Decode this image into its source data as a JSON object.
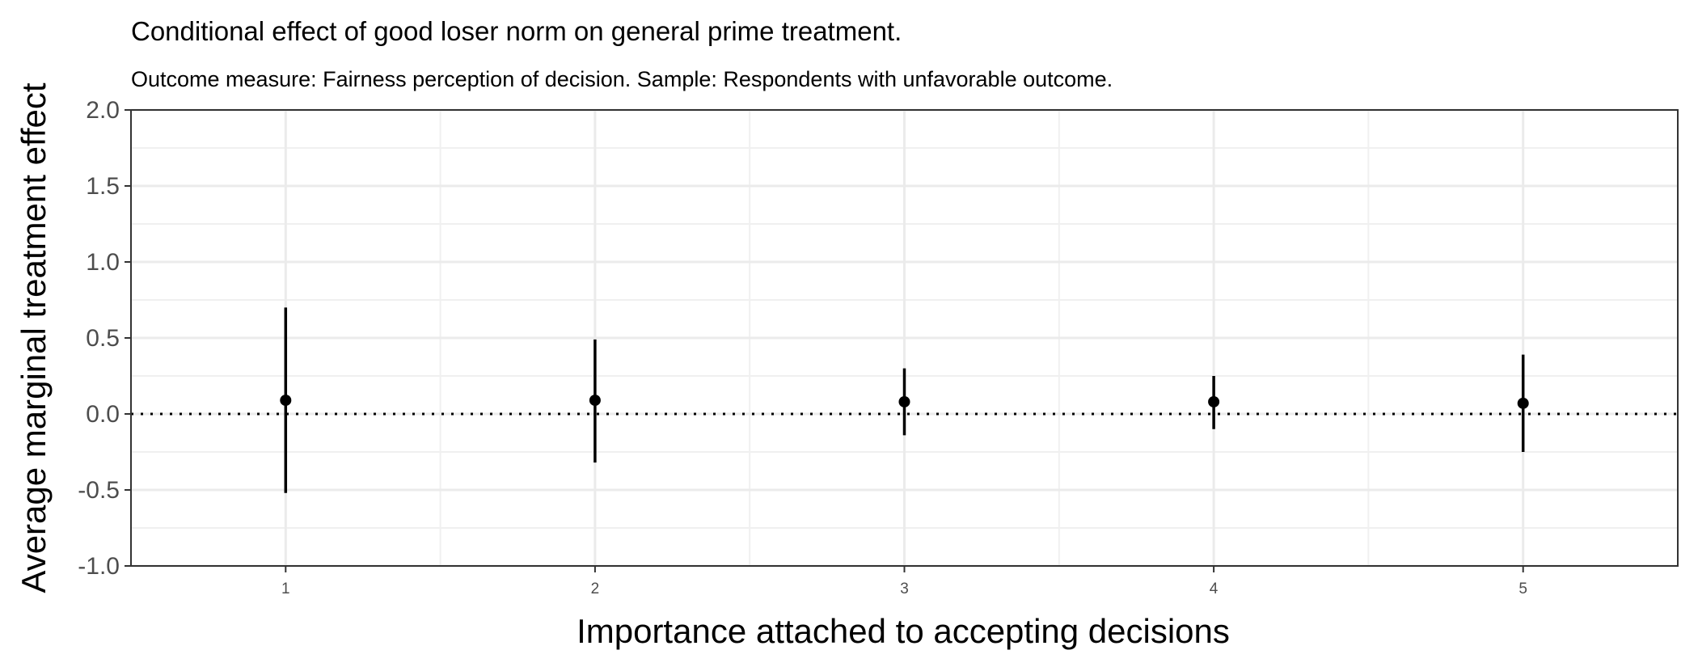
{
  "chart_data": {
    "type": "scatter",
    "title": "Conditional effect of good loser norm on general prime treatment.",
    "subtitle": "Outcome measure: Fairness perception of decision. Sample: Respondents with unfavorable outcome.",
    "xlabel": "Importance attached to accepting decisions",
    "ylabel": "Average marginal treatment effect",
    "x_ticks": [
      "1",
      "2",
      "3",
      "4",
      "5"
    ],
    "y_ticks": [
      "2.0",
      "1.5",
      "1.0",
      "0.5",
      "0.0",
      "-0.5",
      "-1.0"
    ],
    "xlim": [
      0.5,
      5.5
    ],
    "ylim": [
      -1.0,
      2.0
    ],
    "reference_line": 0.0,
    "grid": true,
    "series": [
      {
        "points": [
          {
            "x": 1,
            "y": 0.09,
            "lower": -0.52,
            "upper": 0.7
          },
          {
            "x": 2,
            "y": 0.09,
            "lower": -0.32,
            "upper": 0.49
          },
          {
            "x": 3,
            "y": 0.08,
            "lower": -0.14,
            "upper": 0.3
          },
          {
            "x": 4,
            "y": 0.08,
            "lower": -0.1,
            "upper": 0.25
          },
          {
            "x": 5,
            "y": 0.07,
            "lower": -0.25,
            "upper": 0.39
          }
        ]
      }
    ]
  }
}
